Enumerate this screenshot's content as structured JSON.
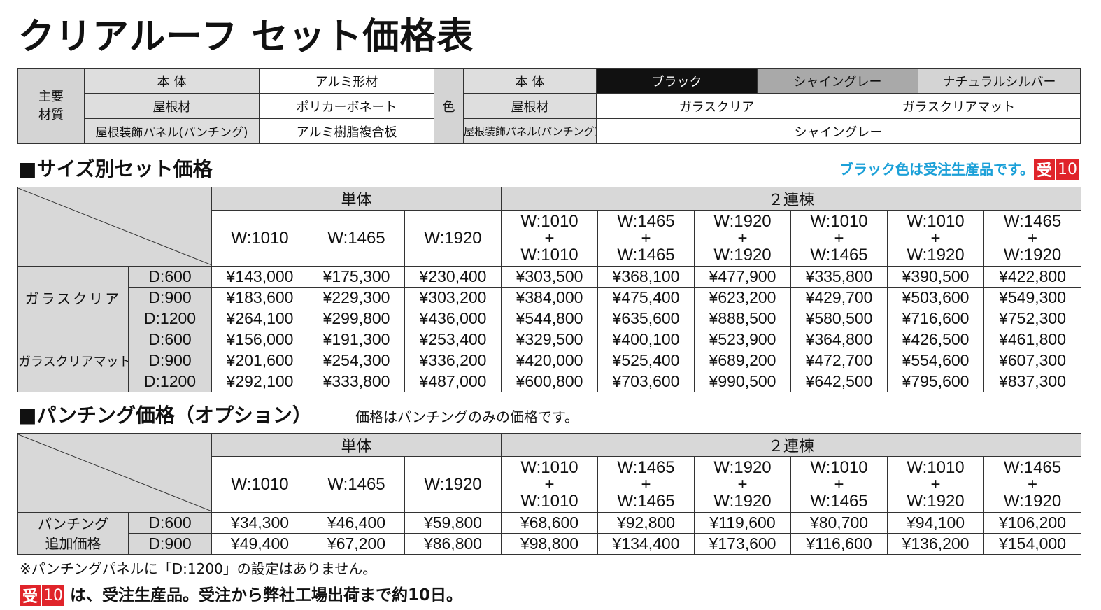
{
  "title": "クリアルーフ セット価格表",
  "materials": {
    "main_label_1": "主要",
    "main_label_2": "材質",
    "rows": [
      {
        "label": "本 体",
        "value": "アルミ形材"
      },
      {
        "label": "屋根材",
        "value": "ポリカーボネート"
      },
      {
        "label": "屋根装飾パネル(パンチング)",
        "value": "アルミ樹脂複合板"
      }
    ],
    "color_label": "色",
    "color_rows": {
      "body_label": "本 体",
      "body_colors": [
        "ブラック",
        "シャイングレー",
        "ナチュラルシルバー"
      ],
      "roof_label": "屋根材",
      "roof_colors": [
        "ガラスクリア",
        "ガラスクリアマット"
      ],
      "panel_label": "屋根装飾パネル(パンチング)",
      "panel_color": "シャイングレー"
    },
    "colors": {
      "black": "#111111",
      "shine_grey": "#a9a9a9",
      "natural_silver": "#d4d4d4"
    }
  },
  "size_section": {
    "heading": "■サイズ別セット価格",
    "note": "ブラック色は受注生産品です。",
    "badge_1": "受",
    "badge_2": "10",
    "group_single": "単体",
    "group_double": "２連棟",
    "single_widths": [
      "W:1010",
      "W:1465",
      "W:1920"
    ],
    "double_widths": [
      {
        "top": "W:1010",
        "plus": "+",
        "bottom": "W:1010"
      },
      {
        "top": "W:1465",
        "plus": "+",
        "bottom": "W:1465"
      },
      {
        "top": "W:1920",
        "plus": "+",
        "bottom": "W:1920"
      },
      {
        "top": "W:1010",
        "plus": "+",
        "bottom": "W:1465"
      },
      {
        "top": "W:1010",
        "plus": "+",
        "bottom": "W:1920"
      },
      {
        "top": "W:1465",
        "plus": "+",
        "bottom": "W:1920"
      }
    ],
    "groups": [
      {
        "name": "ガラスクリア",
        "rows": [
          {
            "depth": "D:600",
            "prices": [
              "¥143,000",
              "¥175,300",
              "¥230,400",
              "¥303,500",
              "¥368,100",
              "¥477,900",
              "¥335,800",
              "¥390,500",
              "¥422,800"
            ]
          },
          {
            "depth": "D:900",
            "prices": [
              "¥183,600",
              "¥229,300",
              "¥303,200",
              "¥384,000",
              "¥475,400",
              "¥623,200",
              "¥429,700",
              "¥503,600",
              "¥549,300"
            ]
          },
          {
            "depth": "D:1200",
            "prices": [
              "¥264,100",
              "¥299,800",
              "¥436,000",
              "¥544,800",
              "¥635,600",
              "¥888,500",
              "¥580,500",
              "¥716,600",
              "¥752,300"
            ]
          }
        ]
      },
      {
        "name": "ガラスクリアマット",
        "rows": [
          {
            "depth": "D:600",
            "prices": [
              "¥156,000",
              "¥191,300",
              "¥253,400",
              "¥329,500",
              "¥400,100",
              "¥523,900",
              "¥364,800",
              "¥426,500",
              "¥461,800"
            ]
          },
          {
            "depth": "D:900",
            "prices": [
              "¥201,600",
              "¥254,300",
              "¥336,200",
              "¥420,000",
              "¥525,400",
              "¥689,200",
              "¥472,700",
              "¥554,600",
              "¥607,300"
            ]
          },
          {
            "depth": "D:1200",
            "prices": [
              "¥292,100",
              "¥333,800",
              "¥487,000",
              "¥600,800",
              "¥703,600",
              "¥990,500",
              "¥642,500",
              "¥795,600",
              "¥837,300"
            ]
          }
        ]
      }
    ]
  },
  "punching_section": {
    "heading": "■パンチング価格（オプション）",
    "note": "価格はパンチングのみの価格です。",
    "row_label_1": "パンチング",
    "row_label_2": "追加価格",
    "rows": [
      {
        "depth": "D:600",
        "prices": [
          "¥34,300",
          "¥46,400",
          "¥59,800",
          "¥68,600",
          "¥92,800",
          "¥119,600",
          "¥80,700",
          "¥94,100",
          "¥106,200"
        ]
      },
      {
        "depth": "D:900",
        "prices": [
          "¥49,400",
          "¥67,200",
          "¥86,800",
          "¥98,800",
          "¥134,400",
          "¥173,600",
          "¥116,600",
          "¥136,200",
          "¥154,000"
        ]
      }
    ]
  },
  "footnotes": {
    "note_1": "※パンチングパネルに「D:1200」の設定はありません。",
    "badge_1": "受",
    "badge_2": "10",
    "note_2": "は、受注生産品。受注から弊社工場出荷まで約10日。"
  }
}
